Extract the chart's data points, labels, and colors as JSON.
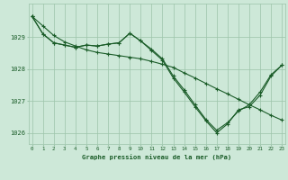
{
  "title": "Graphe pression niveau de la mer (hPa)",
  "bg_color": "#cde8d8",
  "line_color": "#1a5c28",
  "grid_color": "#9cc4aa",
  "series": [
    {
      "x": [
        0,
        1,
        2,
        3,
        4,
        5,
        6,
        7,
        8,
        9,
        10,
        11,
        12,
        13,
        14,
        15,
        16,
        17,
        18,
        19,
        20,
        21,
        22,
        23
      ],
      "y": [
        1029.65,
        1029.35,
        1029.05,
        1028.85,
        1028.72,
        1028.6,
        1028.52,
        1028.47,
        1028.42,
        1028.37,
        1028.32,
        1028.24,
        1028.15,
        1028.05,
        1027.88,
        1027.72,
        1027.55,
        1027.38,
        1027.22,
        1027.05,
        1026.88,
        1026.72,
        1026.55,
        1026.4
      ]
    },
    {
      "x": [
        0,
        1,
        2,
        3,
        4,
        5,
        6,
        7,
        8,
        9,
        10,
        11,
        12,
        13,
        14,
        15,
        16,
        17,
        18,
        19,
        20,
        21,
        22,
        23
      ],
      "y": [
        1029.65,
        1029.1,
        1028.82,
        1028.75,
        1028.68,
        1028.75,
        1028.72,
        1028.78,
        1028.82,
        1029.12,
        1028.88,
        1028.58,
        1028.28,
        1027.72,
        1027.28,
        1026.82,
        1026.38,
        1026.0,
        1026.28,
        1026.72,
        1026.82,
        1027.18,
        1027.78,
        1028.12
      ]
    },
    {
      "x": [
        0,
        1,
        2,
        3,
        4,
        5,
        6,
        7,
        8,
        9,
        10,
        11,
        12,
        13,
        14,
        15,
        16,
        17,
        18,
        19,
        20,
        21,
        22,
        23
      ],
      "y": [
        1029.65,
        1029.1,
        1028.82,
        1028.75,
        1028.68,
        1028.75,
        1028.72,
        1028.78,
        1028.82,
        1029.12,
        1028.88,
        1028.62,
        1028.32,
        1027.78,
        1027.35,
        1026.88,
        1026.42,
        1026.08,
        1026.32,
        1026.68,
        1026.88,
        1027.28,
        1027.82,
        1028.12
      ]
    }
  ],
  "yticks": [
    1026,
    1027,
    1028,
    1029
  ],
  "xticks": [
    0,
    1,
    2,
    3,
    4,
    5,
    6,
    7,
    8,
    9,
    10,
    11,
    12,
    13,
    14,
    15,
    16,
    17,
    18,
    19,
    20,
    21,
    22,
    23
  ],
  "ylim": [
    1025.65,
    1030.05
  ],
  "xlim": [
    -0.3,
    23.3
  ]
}
